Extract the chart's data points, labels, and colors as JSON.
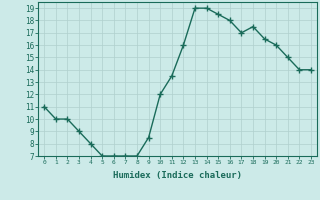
{
  "x": [
    0,
    1,
    2,
    3,
    4,
    5,
    6,
    7,
    8,
    9,
    10,
    11,
    12,
    13,
    14,
    15,
    16,
    17,
    18,
    19,
    20,
    21,
    22,
    23
  ],
  "y": [
    11,
    10,
    10,
    9,
    8,
    7,
    7,
    7,
    7,
    8.5,
    12,
    13.5,
    16,
    19,
    19,
    18.5,
    18,
    17,
    17.5,
    16.5,
    16,
    15,
    14,
    14
  ],
  "line_color": "#1a6b5a",
  "marker_color": "#1a6b5a",
  "bg_color": "#cceae8",
  "grid_color": "#b0d0ce",
  "xlabel": "Humidex (Indice chaleur)",
  "xlabel_color": "#1a6b5a",
  "tick_color": "#1a6b5a",
  "xlim": [
    -0.5,
    23.5
  ],
  "ylim": [
    7,
    19.5
  ],
  "yticks": [
    7,
    8,
    9,
    10,
    11,
    12,
    13,
    14,
    15,
    16,
    17,
    18,
    19
  ],
  "xticks": [
    0,
    1,
    2,
    3,
    4,
    5,
    6,
    7,
    8,
    9,
    10,
    11,
    12,
    13,
    14,
    15,
    16,
    17,
    18,
    19,
    20,
    21,
    22,
    23
  ],
  "xtick_labels": [
    "0",
    "1",
    "2",
    "3",
    "4",
    "5",
    "6",
    "7",
    "8",
    "9",
    "10",
    "11",
    "12",
    "13",
    "14",
    "15",
    "16",
    "17",
    "18",
    "19",
    "20",
    "21",
    "22",
    "23"
  ],
  "line_width": 1.0,
  "marker_size": 4,
  "marker_style": "+"
}
